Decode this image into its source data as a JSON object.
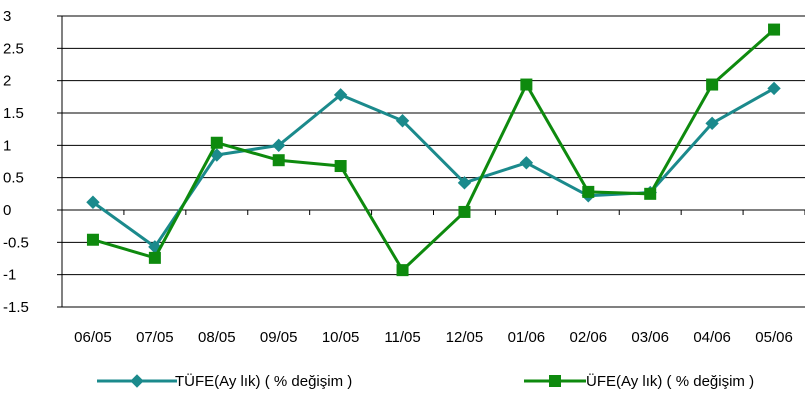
{
  "chart_data": {
    "type": "line",
    "categories": [
      "06/05",
      "07/05",
      "08/05",
      "09/05",
      "10/05",
      "11/05",
      "12/05",
      "01/06",
      "02/06",
      "03/06",
      "04/06",
      "05/06"
    ],
    "series": [
      {
        "name": "TÜFE(Ay lık) ( % değişim )",
        "color": "#1B8A8C",
        "marker": "diamond",
        "values": [
          0.12,
          -0.57,
          0.85,
          1.0,
          1.78,
          1.38,
          0.42,
          0.73,
          0.22,
          0.27,
          1.34,
          1.88
        ]
      },
      {
        "name": "ÜFE(Ay lık) ( % değişim )",
        "color": "#0E8A0E",
        "marker": "square",
        "values": [
          -0.46,
          -0.74,
          1.04,
          0.77,
          0.68,
          -0.93,
          -0.03,
          1.94,
          0.28,
          0.25,
          1.94,
          2.79
        ]
      }
    ],
    "yticks": [
      "3",
      "2.5",
      "2",
      "1.5",
      "1",
      "0.5",
      "0",
      "-0.5",
      "-1",
      "-1.5"
    ],
    "ylim": [
      -1.5,
      3
    ],
    "grid": true,
    "legend_position": "bottom"
  }
}
